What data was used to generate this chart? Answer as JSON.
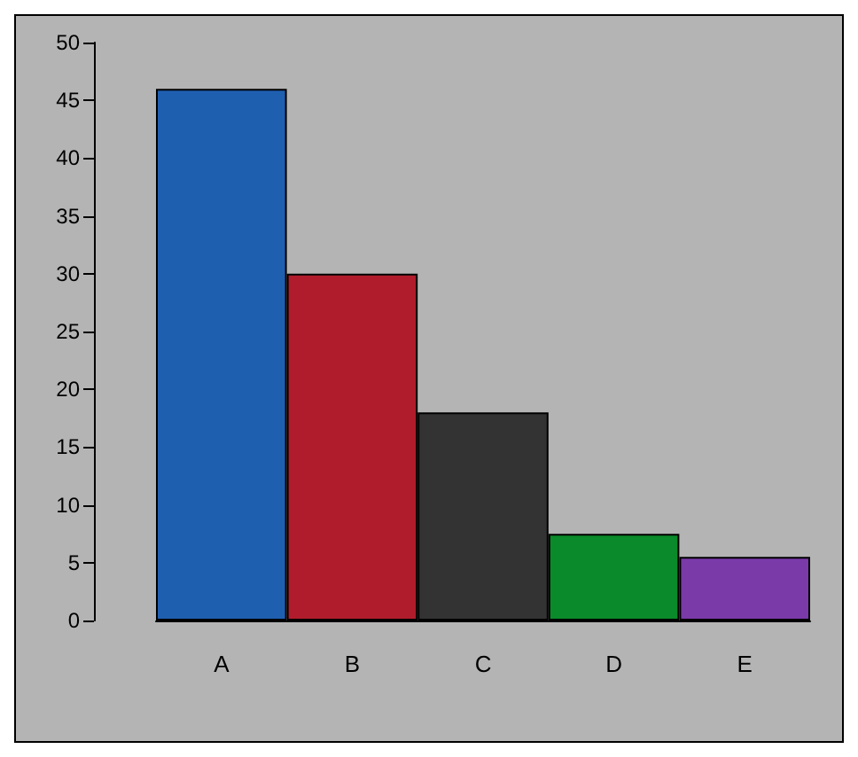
{
  "chart_data": {
    "type": "bar",
    "categories": [
      "A",
      "B",
      "C",
      "D",
      "E"
    ],
    "values": [
      46,
      30,
      18,
      7.5,
      5.5
    ],
    "colors": [
      "#1f5fb0",
      "#b01c2c",
      "#333333",
      "#0a8a2a",
      "#7a3aa8"
    ],
    "ylim": [
      0,
      50
    ],
    "yticks": [
      0,
      5,
      10,
      15,
      20,
      25,
      30,
      35,
      40,
      45,
      50
    ],
    "grid": false
  }
}
